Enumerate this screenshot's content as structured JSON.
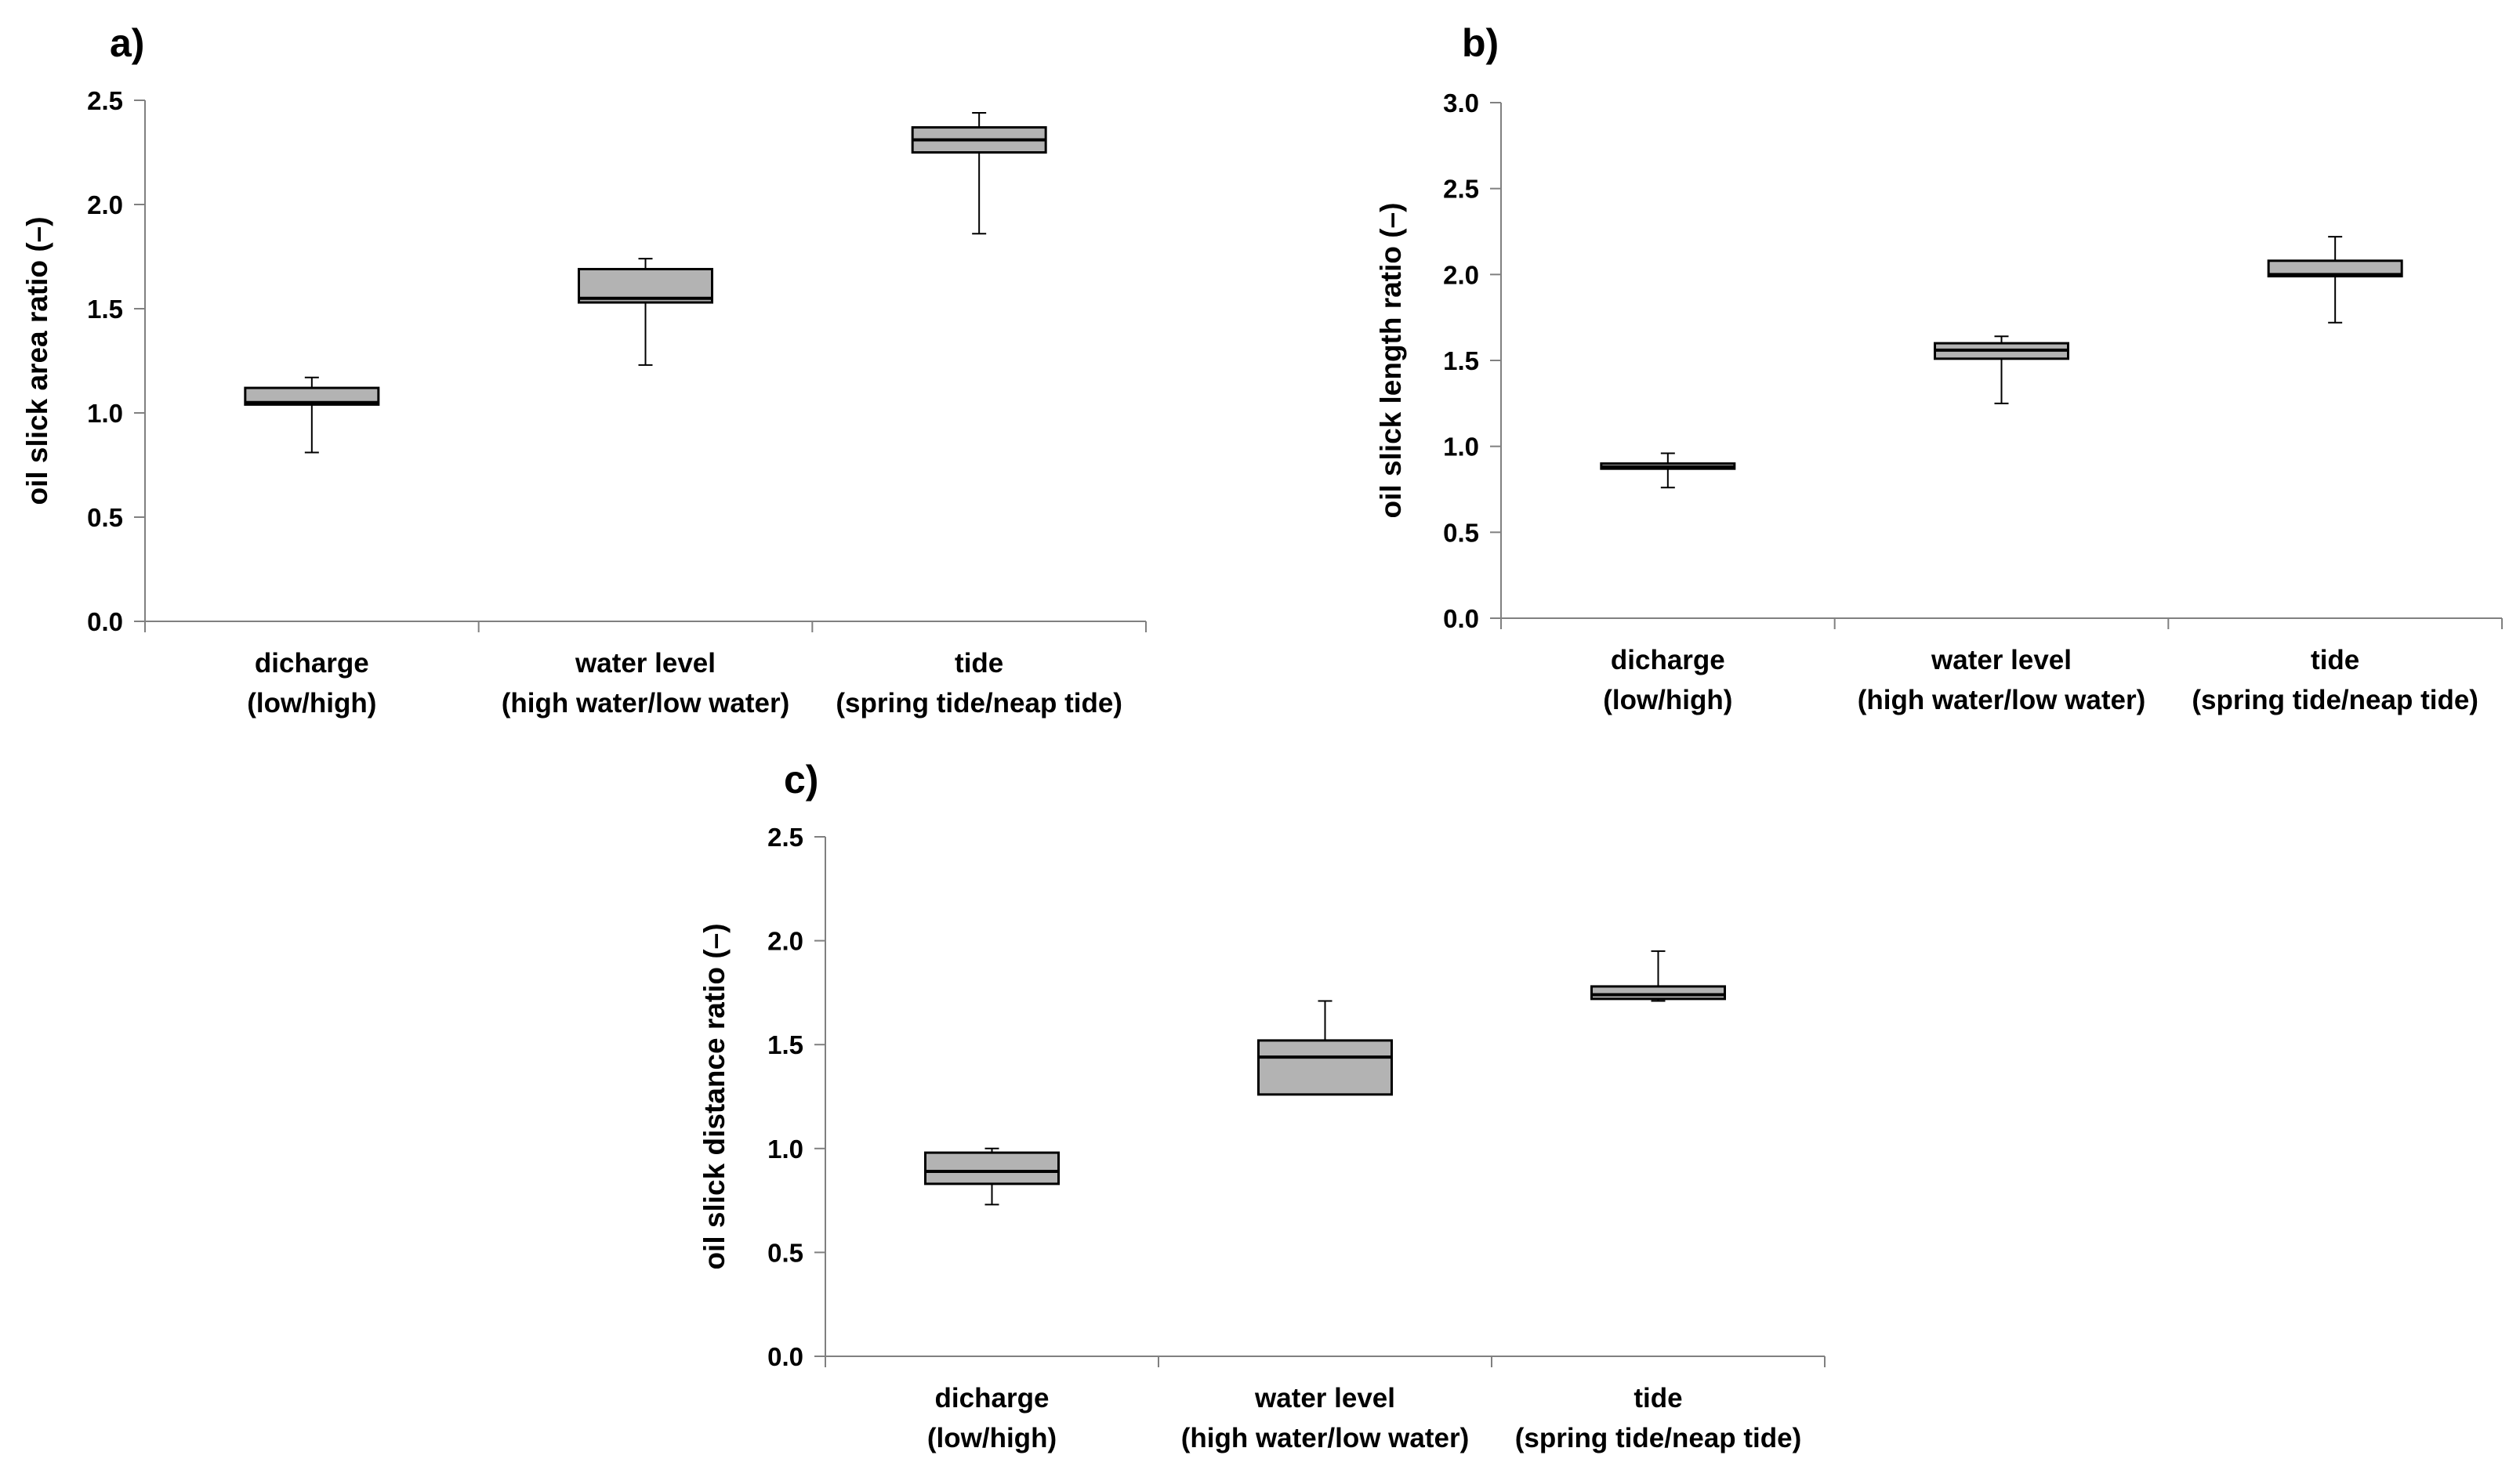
{
  "chart_data": [
    {
      "type": "box",
      "panel": "a)",
      "ylabel": "oil slick area ratio (–)",
      "ylim": [
        0,
        2.5
      ],
      "yticks": [
        "0.0",
        "0.5",
        "1.0",
        "1.5",
        "2.0",
        "2.5"
      ],
      "categories": [
        {
          "line1": "dicharge",
          "line2": "(low/high)"
        },
        {
          "line1": "water level",
          "line2": "(high water/low water)"
        },
        {
          "line1": "tide",
          "line2": "(spring tide/neap tide)"
        }
      ],
      "boxes": [
        {
          "min": 0.81,
          "q1": 1.04,
          "median": 1.05,
          "q3": 1.12,
          "max": 1.17
        },
        {
          "min": 1.23,
          "q1": 1.53,
          "median": 1.55,
          "q3": 1.69,
          "max": 1.74
        },
        {
          "min": 1.86,
          "q1": 2.25,
          "median": 2.31,
          "q3": 2.37,
          "max": 2.44
        }
      ]
    },
    {
      "type": "box",
      "panel": "b)",
      "ylabel": "oil slick length ratio (–)",
      "ylim": [
        0,
        3.0
      ],
      "yticks": [
        "0.0",
        "0.5",
        "1.0",
        "1.5",
        "2.0",
        "2.5",
        "3.0"
      ],
      "categories": [
        {
          "line1": "dicharge",
          "line2": "(low/high)"
        },
        {
          "line1": "water level",
          "line2": "(high water/low water)"
        },
        {
          "line1": "tide",
          "line2": "(spring tide/neap tide)"
        }
      ],
      "boxes": [
        {
          "min": 0.76,
          "q1": 0.87,
          "median": 0.88,
          "q3": 0.9,
          "max": 0.96
        },
        {
          "min": 1.25,
          "q1": 1.51,
          "median": 1.56,
          "q3": 1.6,
          "max": 1.64
        },
        {
          "min": 1.72,
          "q1": 1.99,
          "median": 2.0,
          "q3": 2.08,
          "max": 2.22
        }
      ]
    },
    {
      "type": "box",
      "panel": "c)",
      "ylabel": "oil slick distance ratio (–)",
      "ylim": [
        0,
        2.5
      ],
      "yticks": [
        "0.0",
        "0.5",
        "1.0",
        "1.5",
        "2.0",
        "2.5"
      ],
      "categories": [
        {
          "line1": "dicharge",
          "line2": "(low/high)"
        },
        {
          "line1": "water level",
          "line2": "(high water/low water)"
        },
        {
          "line1": "tide",
          "line2": "(spring tide/neap tide)"
        }
      ],
      "boxes": [
        {
          "min": 0.73,
          "q1": 0.83,
          "median": 0.89,
          "q3": 0.98,
          "max": 1.0
        },
        {
          "min": 1.26,
          "q1": 1.26,
          "median": 1.44,
          "q3": 1.52,
          "max": 1.71
        },
        {
          "min": 1.71,
          "q1": 1.72,
          "median": 1.74,
          "q3": 1.78,
          "max": 1.95
        }
      ]
    }
  ],
  "colors": {
    "box_fill": "#b3b3b3",
    "stroke": "#000000",
    "axis": "#808080"
  }
}
